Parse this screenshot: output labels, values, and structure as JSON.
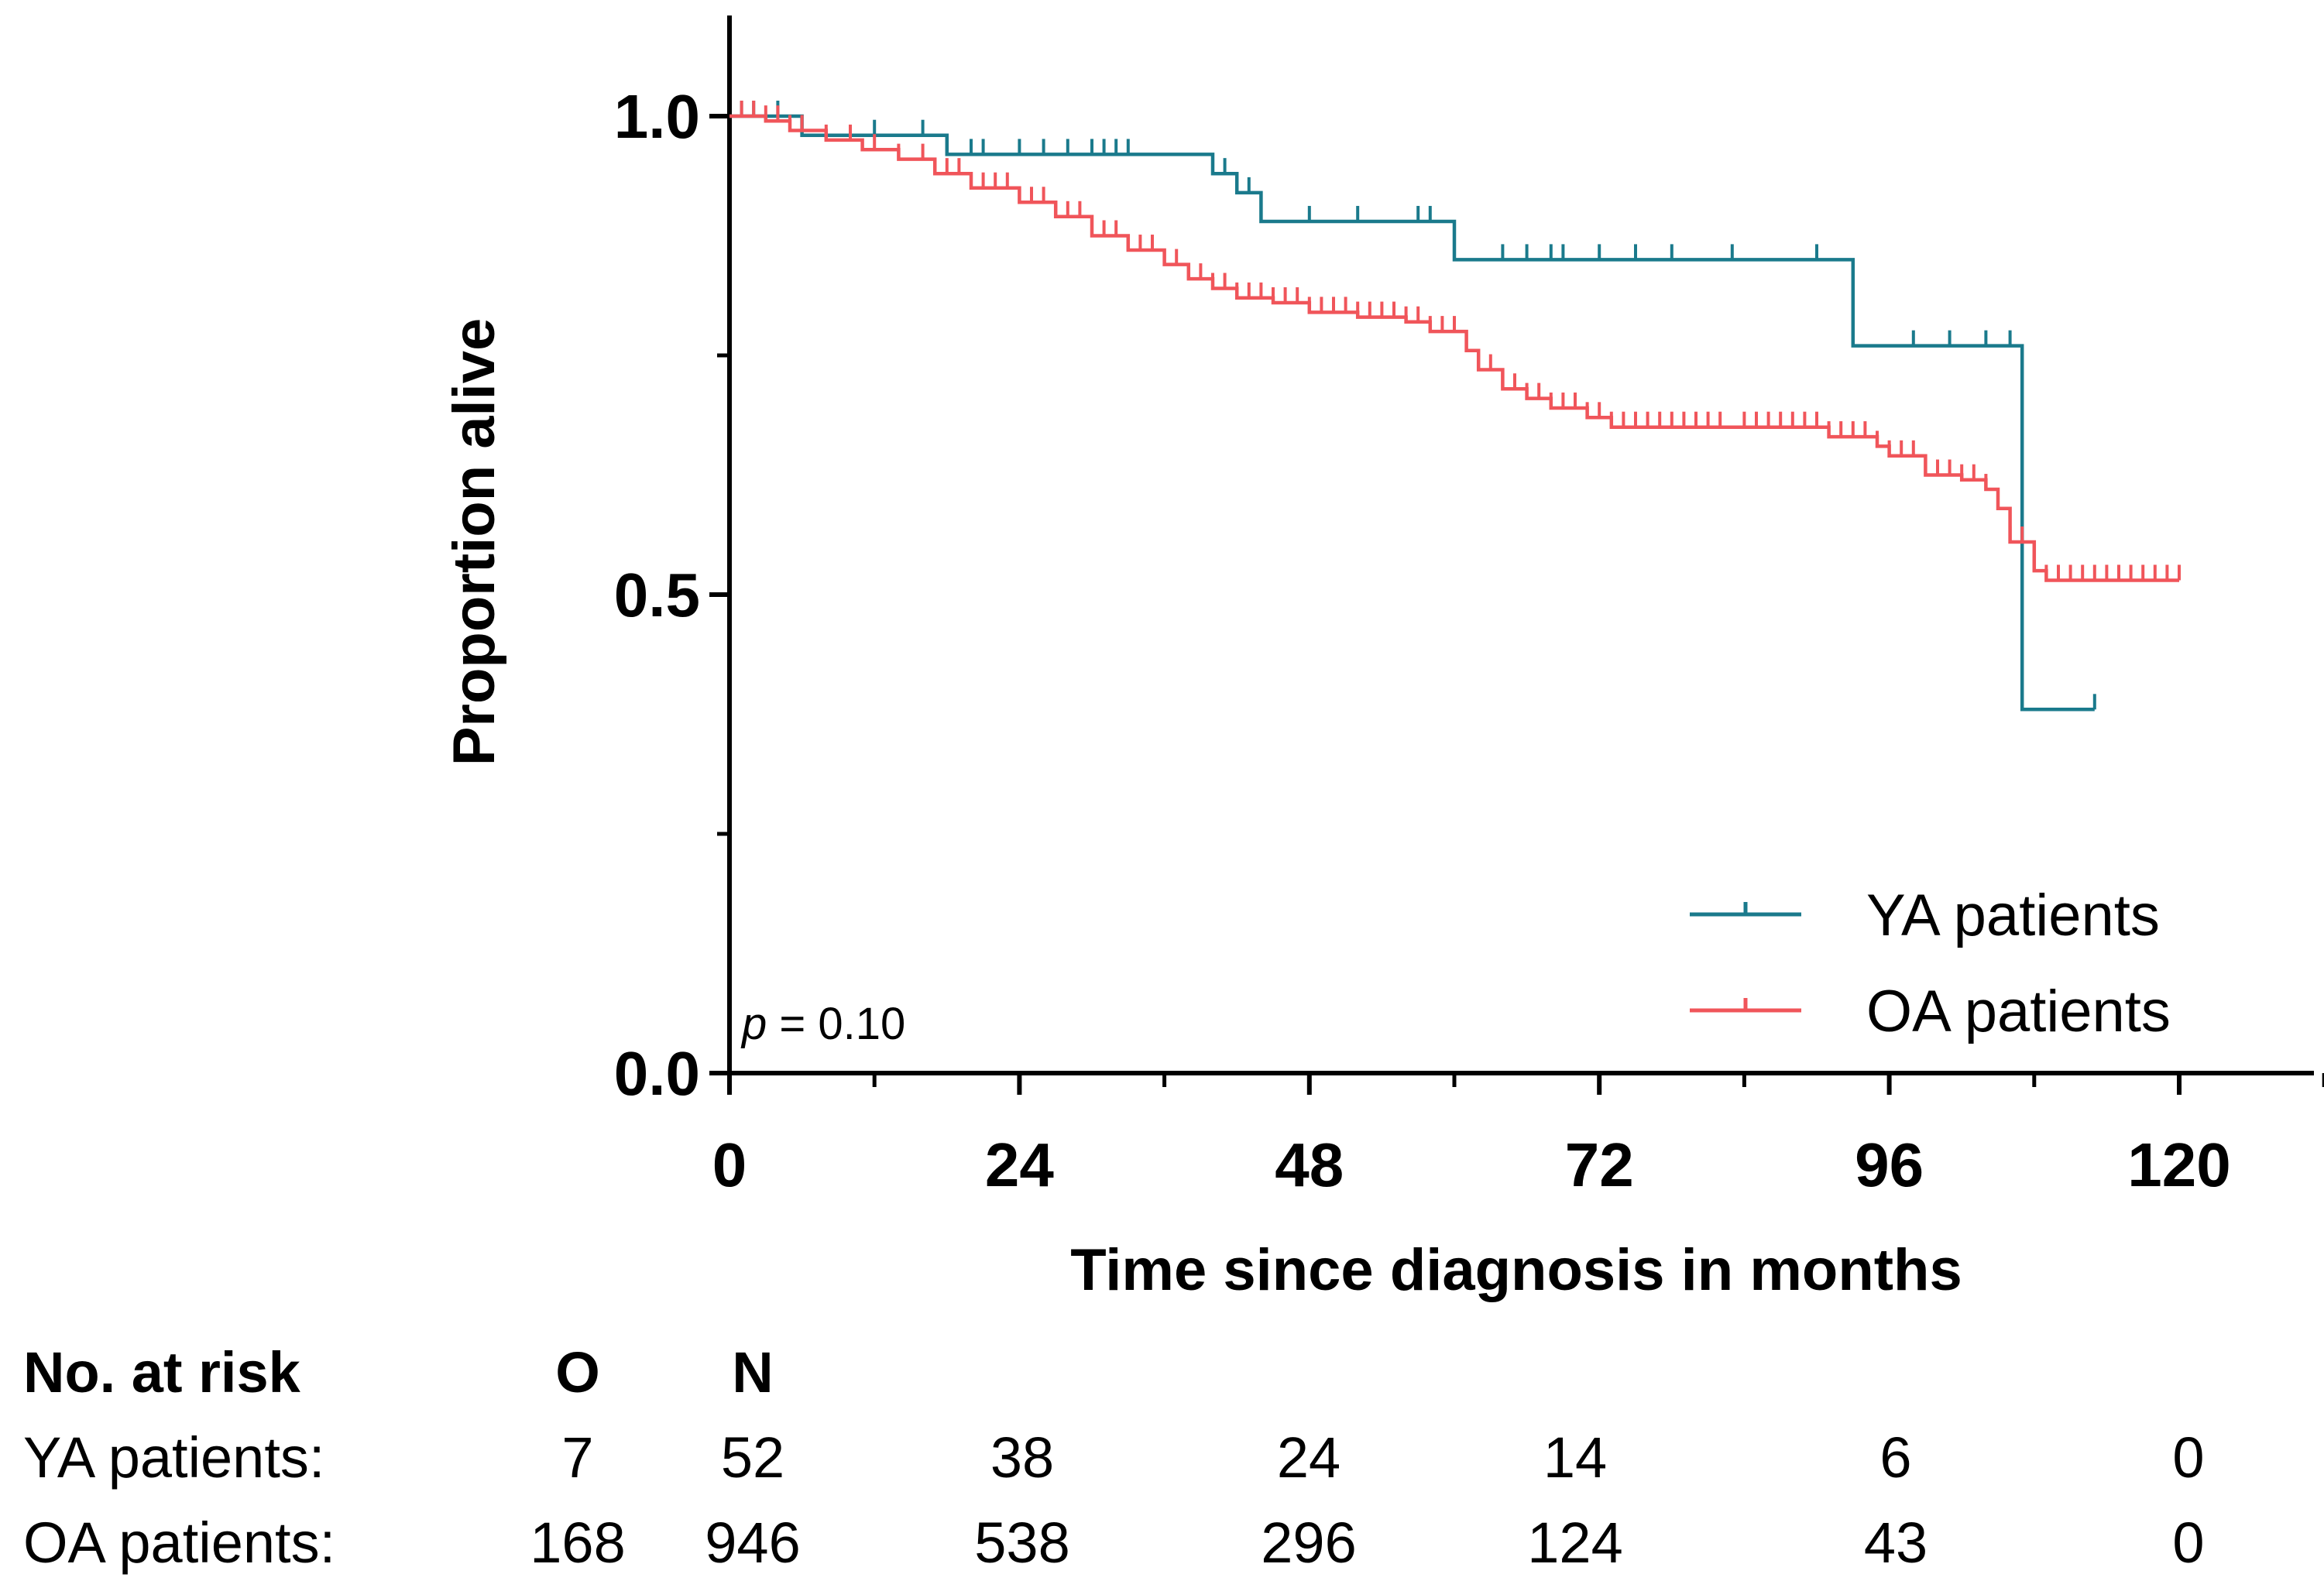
{
  "chart_data": {
    "type": "line",
    "subtype": "kaplan-meier",
    "title": "",
    "xlabel": "Time since diagnosis in months",
    "ylabel": "Proportion alive",
    "xlim": [
      0,
      132
    ],
    "ylim": [
      0,
      1.1
    ],
    "xticks": [
      0,
      24,
      48,
      72,
      96,
      120
    ],
    "yticks": [
      0.0,
      0.5,
      1.0
    ],
    "ytick_labels": [
      "0.0",
      "0.5",
      "1.0"
    ],
    "grid": false,
    "legend_position": "bottom-right",
    "annotation": {
      "p_italic": "p",
      "p_rest": " = 0.10"
    },
    "series": [
      {
        "name": "YA patients",
        "color": "#1a7a8c",
        "steps": [
          [
            0,
            1.0
          ],
          [
            4,
            1.0
          ],
          [
            6,
            0.98
          ],
          [
            18,
            0.98
          ],
          [
            18,
            0.96
          ],
          [
            40,
            0.96
          ],
          [
            40,
            0.94
          ],
          [
            42,
            0.94
          ],
          [
            42,
            0.92
          ],
          [
            44,
            0.92
          ],
          [
            44,
            0.89
          ],
          [
            60,
            0.89
          ],
          [
            60,
            0.85
          ],
          [
            93,
            0.85
          ],
          [
            93,
            0.76
          ],
          [
            107,
            0.76
          ],
          [
            107,
            0.38
          ],
          [
            113,
            0.38
          ]
        ],
        "censor_times": [
          1,
          2,
          4,
          12,
          16,
          20,
          21,
          24,
          26,
          28,
          30,
          31,
          32,
          33,
          40,
          41,
          43,
          48,
          52,
          57,
          58,
          64,
          66,
          68,
          69,
          72,
          75,
          78,
          83,
          90,
          93,
          98,
          101,
          104,
          106,
          113
        ]
      },
      {
        "name": "OA patients",
        "color": "#f0555a",
        "steps": [
          [
            0,
            1.0
          ],
          [
            3,
            0.995
          ],
          [
            5,
            0.985
          ],
          [
            8,
            0.975
          ],
          [
            11,
            0.965
          ],
          [
            14,
            0.955
          ],
          [
            17,
            0.94
          ],
          [
            20,
            0.925
          ],
          [
            24,
            0.91
          ],
          [
            27,
            0.895
          ],
          [
            30,
            0.875
          ],
          [
            33,
            0.86
          ],
          [
            36,
            0.845
          ],
          [
            38,
            0.83
          ],
          [
            40,
            0.82
          ],
          [
            42,
            0.81
          ],
          [
            45,
            0.805
          ],
          [
            48,
            0.795
          ],
          [
            52,
            0.79
          ],
          [
            56,
            0.785
          ],
          [
            58,
            0.775
          ],
          [
            61,
            0.755
          ],
          [
            62,
            0.735
          ],
          [
            64,
            0.715
          ],
          [
            66,
            0.705
          ],
          [
            68,
            0.695
          ],
          [
            71,
            0.685
          ],
          [
            73,
            0.675
          ],
          [
            80,
            0.675
          ],
          [
            88,
            0.675
          ],
          [
            91,
            0.665
          ],
          [
            95,
            0.655
          ],
          [
            96,
            0.645
          ],
          [
            99,
            0.625
          ],
          [
            102,
            0.62
          ],
          [
            104,
            0.61
          ],
          [
            105,
            0.59
          ],
          [
            106,
            0.555
          ],
          [
            108,
            0.525
          ],
          [
            109,
            0.515
          ],
          [
            120,
            0.515
          ]
        ],
        "censor_times": [
          1,
          2,
          3,
          4,
          5,
          6,
          8,
          10,
          12,
          14,
          16,
          17,
          18,
          19,
          20,
          21,
          22,
          23,
          24,
          25,
          26,
          27,
          28,
          29,
          30,
          31,
          32,
          33,
          34,
          35,
          36,
          37,
          38,
          39,
          40,
          41,
          42,
          43,
          44,
          45,
          46,
          47,
          48,
          49,
          50,
          51,
          52,
          53,
          54,
          55,
          56,
          57,
          58,
          59,
          60,
          61,
          62,
          63,
          64,
          65,
          66,
          67,
          68,
          69,
          70,
          71,
          72,
          73,
          74,
          75,
          76,
          77,
          78,
          79,
          80,
          81,
          82,
          84,
          85,
          86,
          87,
          88,
          89,
          90,
          91,
          92,
          93,
          94,
          95,
          96,
          97,
          98,
          99,
          100,
          101,
          102,
          103,
          104,
          105,
          106,
          107,
          108,
          109,
          110,
          111,
          112,
          113,
          114,
          115,
          116,
          117,
          118,
          119,
          120
        ]
      }
    ],
    "risk_table": {
      "header": [
        "No. at risk",
        "O",
        "N"
      ],
      "rows": [
        {
          "label": "YA patients:",
          "values": [
            "7",
            "52",
            "38",
            "24",
            "14",
            "6",
            "0"
          ]
        },
        {
          "label": "OA patients:",
          "values": [
            "168",
            "946",
            "538",
            "296",
            "124",
            "43",
            "0"
          ]
        }
      ]
    }
  }
}
